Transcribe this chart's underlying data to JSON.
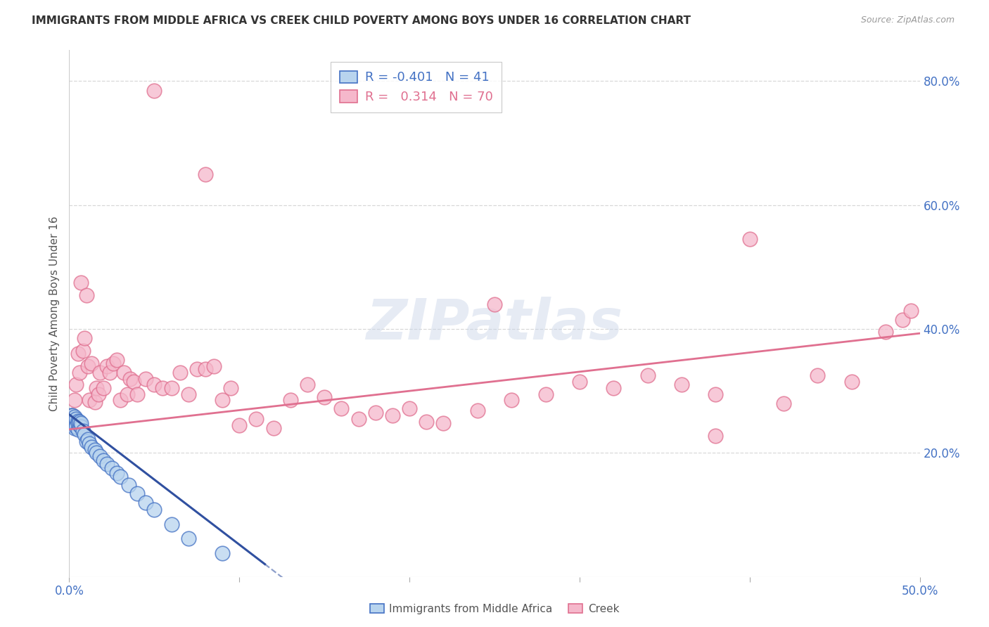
{
  "title": "IMMIGRANTS FROM MIDDLE AFRICA VS CREEK CHILD POVERTY AMONG BOYS UNDER 16 CORRELATION CHART",
  "source": "Source: ZipAtlas.com",
  "ylabel": "Child Poverty Among Boys Under 16",
  "xlim": [
    0.0,
    0.5
  ],
  "ylim": [
    0.0,
    0.85
  ],
  "background_color": "#ffffff",
  "grid_color": "#d8d8d8",
  "axis_color": "#4472c4",
  "watermark_text": "ZIPatlas",
  "legend_R1": "-0.401",
  "legend_N1": "41",
  "legend_R2": "0.314",
  "legend_N2": "70",
  "series1_color": "#b8d4ee",
  "series2_color": "#f5b8cb",
  "series1_edge_color": "#4472c4",
  "series2_edge_color": "#e07090",
  "trendline1_color": "#3050a0",
  "trendline2_color": "#e07090",
  "s1_x": [
    0.001,
    0.001,
    0.001,
    0.002,
    0.002,
    0.002,
    0.002,
    0.003,
    0.003,
    0.003,
    0.004,
    0.004,
    0.004,
    0.005,
    0.005,
    0.005,
    0.006,
    0.006,
    0.007,
    0.007,
    0.008,
    0.009,
    0.01,
    0.011,
    0.012,
    0.013,
    0.015,
    0.016,
    0.018,
    0.02,
    0.022,
    0.025,
    0.028,
    0.03,
    0.035,
    0.04,
    0.045,
    0.05,
    0.06,
    0.07,
    0.09
  ],
  "s1_y": [
    0.255,
    0.26,
    0.25,
    0.248,
    0.255,
    0.245,
    0.26,
    0.24,
    0.252,
    0.258,
    0.248,
    0.255,
    0.242,
    0.238,
    0.252,
    0.248,
    0.245,
    0.25,
    0.242,
    0.248,
    0.235,
    0.23,
    0.218,
    0.222,
    0.215,
    0.21,
    0.205,
    0.2,
    0.195,
    0.188,
    0.182,
    0.175,
    0.168,
    0.162,
    0.148,
    0.135,
    0.12,
    0.108,
    0.085,
    0.062,
    0.038
  ],
  "s2_x": [
    0.002,
    0.003,
    0.004,
    0.005,
    0.006,
    0.007,
    0.008,
    0.009,
    0.01,
    0.011,
    0.012,
    0.013,
    0.015,
    0.016,
    0.017,
    0.018,
    0.02,
    0.022,
    0.024,
    0.026,
    0.028,
    0.03,
    0.032,
    0.034,
    0.036,
    0.038,
    0.04,
    0.045,
    0.05,
    0.055,
    0.06,
    0.065,
    0.07,
    0.075,
    0.08,
    0.085,
    0.09,
    0.095,
    0.1,
    0.11,
    0.12,
    0.13,
    0.14,
    0.15,
    0.16,
    0.17,
    0.18,
    0.19,
    0.2,
    0.21,
    0.22,
    0.24,
    0.26,
    0.28,
    0.3,
    0.32,
    0.34,
    0.36,
    0.38,
    0.4,
    0.42,
    0.44,
    0.46,
    0.48,
    0.49,
    0.495,
    0.25,
    0.08,
    0.05,
    0.38
  ],
  "s2_y": [
    0.26,
    0.285,
    0.31,
    0.36,
    0.33,
    0.475,
    0.365,
    0.385,
    0.455,
    0.34,
    0.285,
    0.345,
    0.282,
    0.305,
    0.295,
    0.33,
    0.305,
    0.34,
    0.33,
    0.345,
    0.35,
    0.285,
    0.33,
    0.295,
    0.32,
    0.315,
    0.295,
    0.32,
    0.31,
    0.305,
    0.305,
    0.33,
    0.295,
    0.335,
    0.335,
    0.34,
    0.285,
    0.305,
    0.245,
    0.255,
    0.24,
    0.285,
    0.31,
    0.29,
    0.272,
    0.255,
    0.265,
    0.26,
    0.272,
    0.25,
    0.248,
    0.268,
    0.285,
    0.295,
    0.315,
    0.305,
    0.325,
    0.31,
    0.295,
    0.545,
    0.28,
    0.325,
    0.315,
    0.395,
    0.415,
    0.43,
    0.44,
    0.65,
    0.785,
    0.228
  ],
  "trendline1_x_end": 0.115,
  "trendline1_dash_end": 0.27,
  "trendline2_x_end": 0.5,
  "trendline1_intercept": 0.262,
  "trendline1_slope": -2.1,
  "trendline2_intercept": 0.238,
  "trendline2_slope": 0.31
}
